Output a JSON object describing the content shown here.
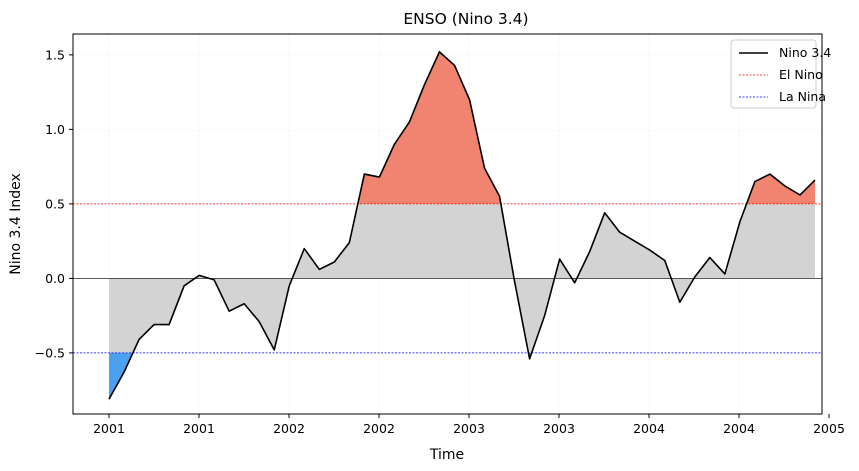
{
  "chart_data": {
    "type": "line",
    "title": "ENSO (Nino 3.4)",
    "xlabel": "Time",
    "ylabel": "Nino 3.4 Index",
    "x_ticks": [
      "2001",
      "2001",
      "2002",
      "2002",
      "2003",
      "2003",
      "2004",
      "2004",
      "2005"
    ],
    "y_ticks": [
      "−0.5",
      "0.0",
      "0.5",
      "1.0",
      "1.5"
    ],
    "y_tick_values": [
      -0.5,
      0.0,
      0.5,
      1.0,
      1.5
    ],
    "ylim": [
      -0.91,
      1.64
    ],
    "grid": true,
    "legend_position": "top-right",
    "series": [
      {
        "name": "Nino 3.4",
        "color": "#000000",
        "values": [
          -0.81,
          -0.63,
          -0.41,
          -0.31,
          -0.31,
          -0.05,
          0.02,
          -0.01,
          -0.22,
          -0.17,
          -0.29,
          -0.48,
          -0.05,
          0.2,
          0.06,
          0.11,
          0.24,
          0.7,
          0.68,
          0.9,
          1.05,
          1.3,
          1.52,
          1.43,
          1.2,
          0.74,
          0.55,
          -0.02,
          -0.54,
          -0.25,
          0.13,
          -0.03,
          0.18,
          0.44,
          0.31,
          0.25,
          0.19,
          0.12,
          -0.16,
          0.01,
          0.14,
          0.03,
          0.38,
          0.65,
          0.7,
          0.62,
          0.56,
          0.66
        ]
      }
    ],
    "thresholds": [
      {
        "name": "El Nino",
        "value": 0.5,
        "color": "#ff0000"
      },
      {
        "name": "La Nina",
        "value": -0.5,
        "color": "#0000ff"
      }
    ],
    "fill_colors": {
      "el_nino": "#f08470",
      "la_nina": "#4ca0f0",
      "neutral": "#d3d3d3"
    }
  }
}
